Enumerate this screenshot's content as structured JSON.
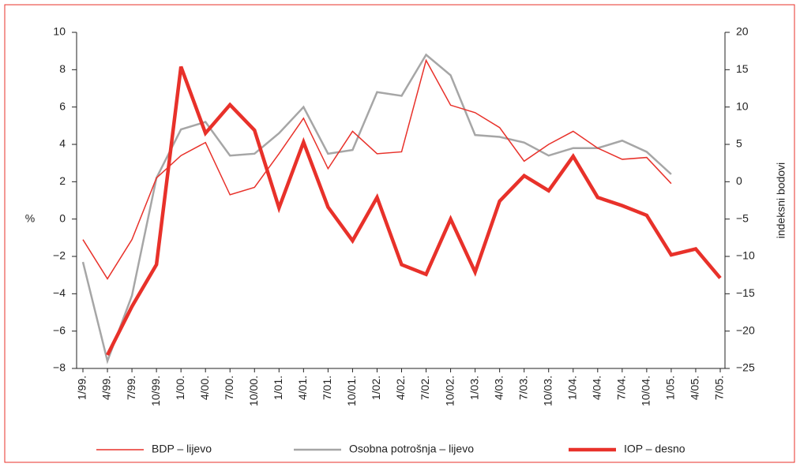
{
  "chart_data": {
    "type": "line",
    "ylabel": "%",
    "y2label": "indeksni bodovi",
    "categories": [
      "1/99.",
      "4/99.",
      "7/99.",
      "10/99.",
      "1/00.",
      "4/00.",
      "7/00.",
      "10/00.",
      "1/01.",
      "4/01.",
      "7/01.",
      "10/01.",
      "1/02.",
      "4/02.",
      "7/02.",
      "10/02.",
      "1/03.",
      "4/03.",
      "7/03.",
      "10/03.",
      "1/04.",
      "4/04.",
      "7/04.",
      "10/04.",
      "1/05.",
      "4/05.",
      "7/05."
    ],
    "series": [
      {
        "name": "BDP – lijevo",
        "color": "#e8312a",
        "width": 1.5,
        "axis": "y",
        "values": [
          -1.1,
          -3.2,
          -1.1,
          2.2,
          3.4,
          4.1,
          1.3,
          1.7,
          3.5,
          5.4,
          2.7,
          4.7,
          3.5,
          3.6,
          8.5,
          6.1,
          5.7,
          4.9,
          3.1,
          4.0,
          4.7,
          3.8,
          3.2,
          3.3,
          1.9,
          null,
          null
        ]
      },
      {
        "name": "Osobna potrošnja – lijevo",
        "color": "#a6a6a6",
        "width": 2.5,
        "axis": "y",
        "values": [
          -2.3,
          -7.6,
          -4.1,
          2.2,
          4.8,
          5.2,
          3.4,
          3.5,
          4.6,
          6.0,
          3.5,
          3.7,
          6.8,
          6.6,
          8.8,
          7.7,
          4.5,
          4.4,
          4.1,
          3.4,
          3.8,
          3.8,
          4.2,
          3.6,
          2.4,
          null,
          null
        ]
      },
      {
        "name": "IOP – desno",
        "color": "#e8312a",
        "width": 4.5,
        "axis": "y2",
        "values": [
          null,
          -23.2,
          -16.7,
          -11.1,
          15.4,
          6.5,
          10.3,
          6.9,
          -3.5,
          5.3,
          -3.4,
          -7.9,
          -2.1,
          -11.1,
          -12.4,
          -5.0,
          -12.1,
          -2.6,
          0.8,
          -1.2,
          3.4,
          -2.1,
          -3.2,
          -4.5,
          -9.8,
          -9.0,
          -12.9
        ]
      }
    ],
    "ylim": [
      -8,
      10
    ],
    "yticks": [
      {
        "value": -8,
        "label": "−8"
      },
      {
        "value": -6,
        "label": "−6"
      },
      {
        "value": -4,
        "label": "−4"
      },
      {
        "value": -2,
        "label": "−2"
      },
      0,
      2,
      4,
      6,
      8,
      10
    ],
    "y2lim": [
      -25,
      20
    ],
    "y2ticks": [
      {
        "value": -25,
        "label": "−25"
      },
      {
        "value": -20,
        "label": "−20"
      },
      {
        "value": -15,
        "label": "−15"
      },
      {
        "value": -10,
        "label": "−10"
      },
      {
        "value": -5,
        "label": "−5"
      },
      0,
      5,
      10,
      15,
      20
    ],
    "legend": "bottom"
  }
}
